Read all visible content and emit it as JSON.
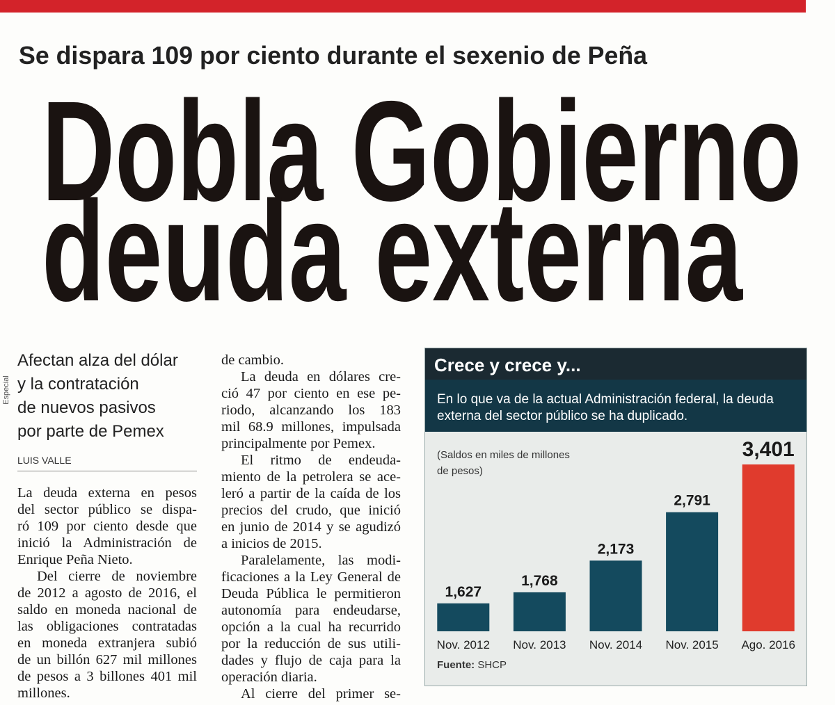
{
  "header": {
    "kicker": "Se dispara 109 por ciento durante el sexenio de Peña",
    "headline": [
      "Dobla Gobierno",
      "deuda externa"
    ]
  },
  "photo_credit": "Especial",
  "deck": [
    "Afectan alza del dólar",
    "y la contratación",
    "de nuevos pasivos",
    "por parte de Pemex"
  ],
  "byline": "LUIS VALLE",
  "columns": [
    [
      "La deuda externa en pesos",
      "del sector público se dispa-",
      "ró 109 por ciento desde que",
      "inició la Administración de",
      "Enrique Peña Nieto.",
      "Del cierre de noviembre",
      "de 2012 a agosto de 2016, el",
      "saldo en moneda nacional de",
      "las obligaciones contratadas",
      "en moneda extranjera subió",
      "de un billón 627 mil millones",
      "de pesos a 3 billones 401 mil",
      "millones."
    ],
    [
      "de cambio.",
      "La deuda en dólares cre-",
      "ció 47 por ciento en ese pe-",
      "riodo, alcanzando los 183",
      "mil 68.9 millones, impulsada",
      "principalmente por Pemex.",
      "El ritmo de endeuda-",
      "miento de la petrolera se ace-",
      "leró a partir de la caída de los",
      "precios del crudo, que inició",
      "en junio de 2014 y se agudizó",
      "a inicios de 2015.",
      "Paralelamente, las modi-",
      "ficaciones a la Ley General de",
      "Deuda Pública le permitieron",
      "autonomía para endeudarse,",
      "opción a la cual ha recurrido",
      "por la reducción de sus utili-",
      "dades y flujo de caja para la",
      "operación diaria.",
      "Al cierre del primer se-"
    ]
  ],
  "chart_data": {
    "type": "bar",
    "title": "Crece y crece y...",
    "subtitle": "En lo que va de la actual Administración federal, la deuda externa del sector público se ha duplicado.",
    "note": "(Saldos en miles de millones de pesos)",
    "categories": [
      "Nov. 2012",
      "Nov. 2013",
      "Nov. 2014",
      "Nov. 2015",
      "Ago. 2016"
    ],
    "values": [
      1627,
      1768,
      2173,
      2791,
      3401
    ],
    "value_labels": [
      "1,627",
      "1,768",
      "2,173",
      "2,791",
      "3,401"
    ],
    "colors": [
      "#144a5e",
      "#144a5e",
      "#144a5e",
      "#144a5e",
      "#e03b2d"
    ],
    "ylim": [
      1270,
      3570
    ],
    "source_label": "Fuente:",
    "source": "SHCP"
  }
}
